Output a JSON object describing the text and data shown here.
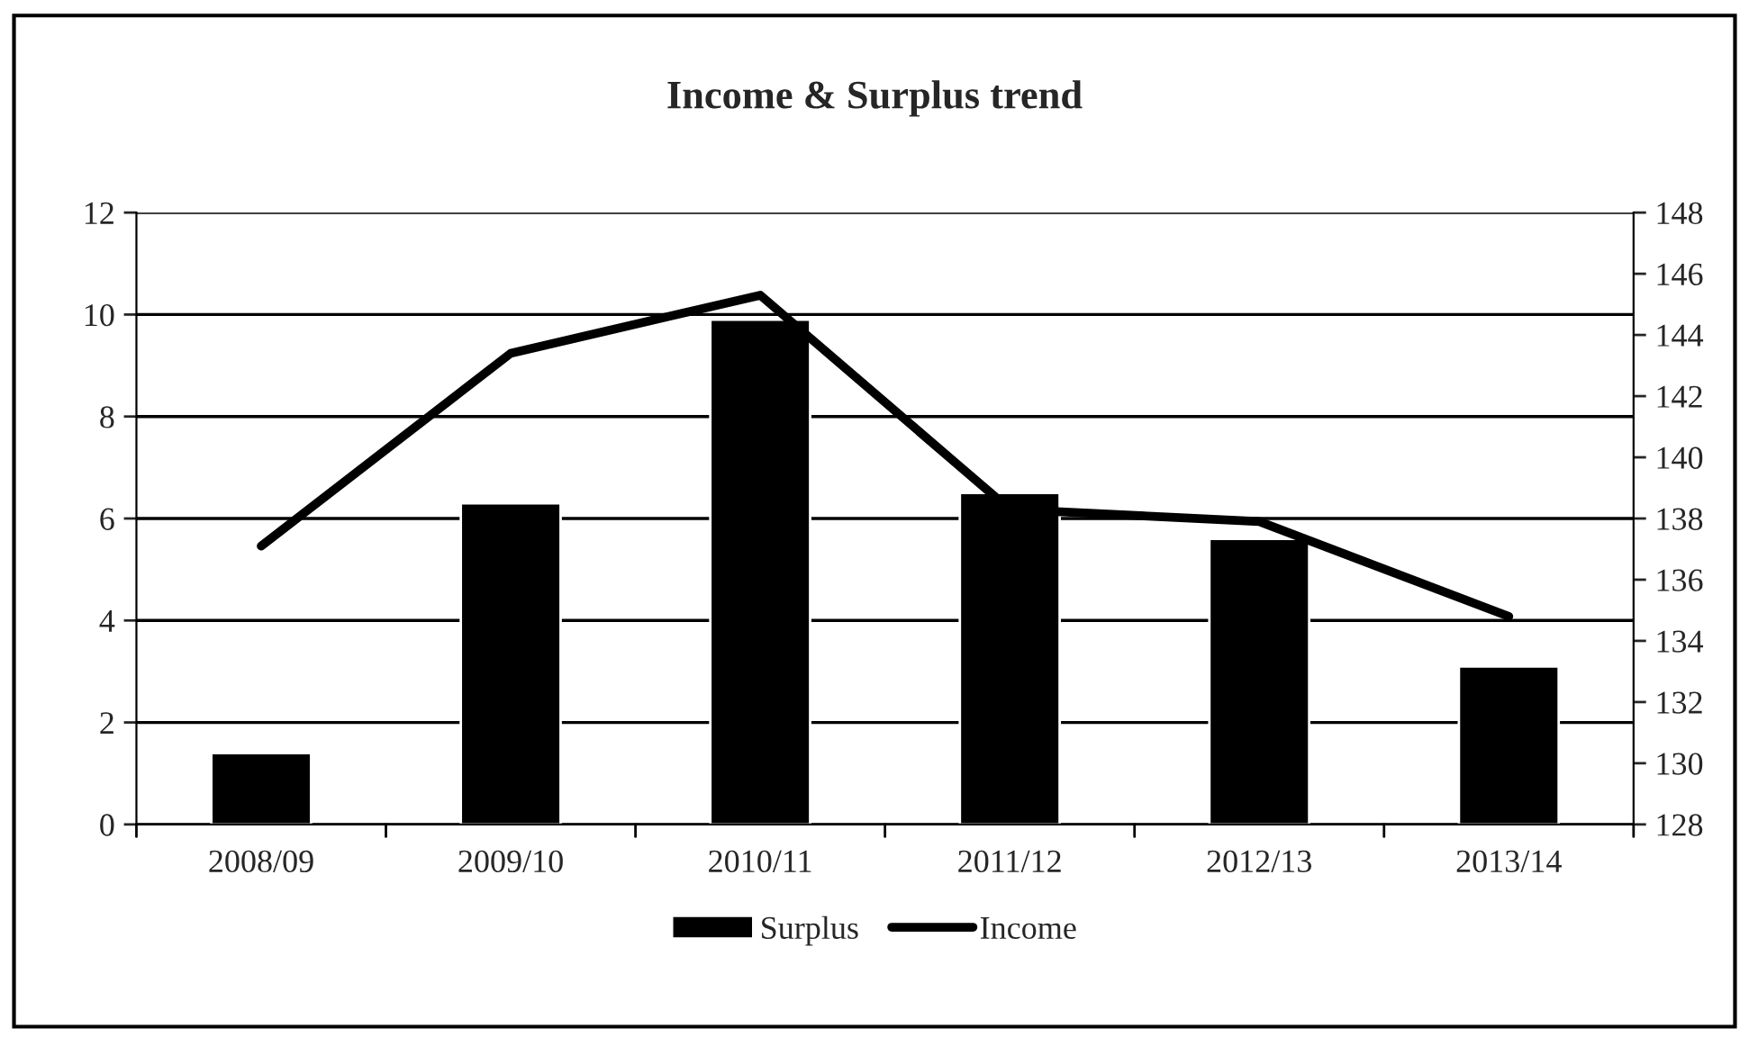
{
  "chart_data": {
    "type": "bar",
    "title": "Income & Surplus trend",
    "categories": [
      "2008/09",
      "2009/10",
      "2010/11",
      "2011/12",
      "2012/13",
      "2013/14"
    ],
    "series": [
      {
        "name": "Surplus",
        "color": "#000000",
        "values": [
          1.4,
          6.3,
          9.9,
          6.5,
          5.6,
          3.1
        ]
      },
      {
        "name": "Income",
        "type": "line",
        "axis": "y2",
        "color": "#000000",
        "values": [
          137.1,
          143.4,
          145.3,
          138.3,
          137.9,
          134.8
        ]
      }
    ],
    "ylim": [
      0,
      12
    ],
    "yticks": [
      0,
      2,
      4,
      6,
      8,
      10,
      12
    ],
    "y2lim": [
      128,
      148
    ],
    "y2ticks": [
      128,
      130,
      132,
      134,
      136,
      138,
      140,
      142,
      144,
      146,
      148
    ],
    "grid": "y",
    "legend": "bottom",
    "marker": "none",
    "line_style": "solid"
  }
}
